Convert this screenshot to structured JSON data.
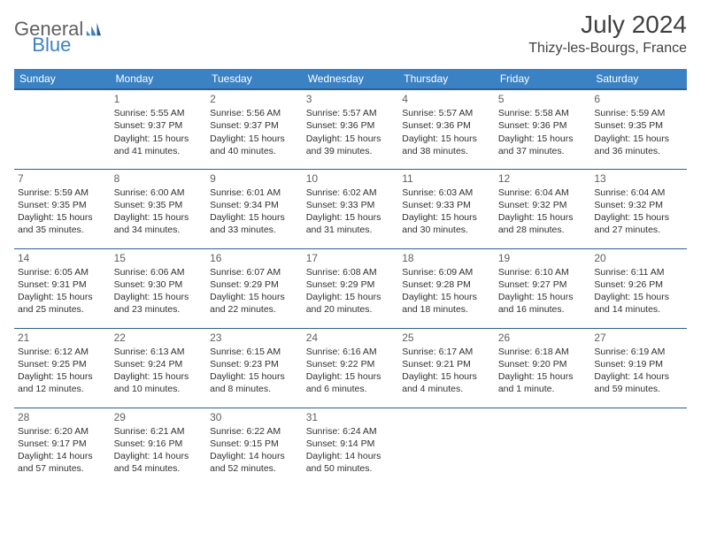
{
  "logo": {
    "text_general": "General",
    "text_blue": "Blue"
  },
  "header": {
    "month_title": "July 2024",
    "location": "Thizy-les-Bourgs, France"
  },
  "colors": {
    "header_bg": "#3b82c4",
    "header_border": "#2d5f8f",
    "text": "#303030",
    "muted": "#606060"
  },
  "day_headers": [
    "Sunday",
    "Monday",
    "Tuesday",
    "Wednesday",
    "Thursday",
    "Friday",
    "Saturday"
  ],
  "weeks": [
    [
      null,
      {
        "n": "1",
        "sr": "Sunrise: 5:55 AM",
        "ss": "Sunset: 9:37 PM",
        "dl": "Daylight: 15 hours and 41 minutes."
      },
      {
        "n": "2",
        "sr": "Sunrise: 5:56 AM",
        "ss": "Sunset: 9:37 PM",
        "dl": "Daylight: 15 hours and 40 minutes."
      },
      {
        "n": "3",
        "sr": "Sunrise: 5:57 AM",
        "ss": "Sunset: 9:36 PM",
        "dl": "Daylight: 15 hours and 39 minutes."
      },
      {
        "n": "4",
        "sr": "Sunrise: 5:57 AM",
        "ss": "Sunset: 9:36 PM",
        "dl": "Daylight: 15 hours and 38 minutes."
      },
      {
        "n": "5",
        "sr": "Sunrise: 5:58 AM",
        "ss": "Sunset: 9:36 PM",
        "dl": "Daylight: 15 hours and 37 minutes."
      },
      {
        "n": "6",
        "sr": "Sunrise: 5:59 AM",
        "ss": "Sunset: 9:35 PM",
        "dl": "Daylight: 15 hours and 36 minutes."
      }
    ],
    [
      {
        "n": "7",
        "sr": "Sunrise: 5:59 AM",
        "ss": "Sunset: 9:35 PM",
        "dl": "Daylight: 15 hours and 35 minutes."
      },
      {
        "n": "8",
        "sr": "Sunrise: 6:00 AM",
        "ss": "Sunset: 9:35 PM",
        "dl": "Daylight: 15 hours and 34 minutes."
      },
      {
        "n": "9",
        "sr": "Sunrise: 6:01 AM",
        "ss": "Sunset: 9:34 PM",
        "dl": "Daylight: 15 hours and 33 minutes."
      },
      {
        "n": "10",
        "sr": "Sunrise: 6:02 AM",
        "ss": "Sunset: 9:33 PM",
        "dl": "Daylight: 15 hours and 31 minutes."
      },
      {
        "n": "11",
        "sr": "Sunrise: 6:03 AM",
        "ss": "Sunset: 9:33 PM",
        "dl": "Daylight: 15 hours and 30 minutes."
      },
      {
        "n": "12",
        "sr": "Sunrise: 6:04 AM",
        "ss": "Sunset: 9:32 PM",
        "dl": "Daylight: 15 hours and 28 minutes."
      },
      {
        "n": "13",
        "sr": "Sunrise: 6:04 AM",
        "ss": "Sunset: 9:32 PM",
        "dl": "Daylight: 15 hours and 27 minutes."
      }
    ],
    [
      {
        "n": "14",
        "sr": "Sunrise: 6:05 AM",
        "ss": "Sunset: 9:31 PM",
        "dl": "Daylight: 15 hours and 25 minutes."
      },
      {
        "n": "15",
        "sr": "Sunrise: 6:06 AM",
        "ss": "Sunset: 9:30 PM",
        "dl": "Daylight: 15 hours and 23 minutes."
      },
      {
        "n": "16",
        "sr": "Sunrise: 6:07 AM",
        "ss": "Sunset: 9:29 PM",
        "dl": "Daylight: 15 hours and 22 minutes."
      },
      {
        "n": "17",
        "sr": "Sunrise: 6:08 AM",
        "ss": "Sunset: 9:29 PM",
        "dl": "Daylight: 15 hours and 20 minutes."
      },
      {
        "n": "18",
        "sr": "Sunrise: 6:09 AM",
        "ss": "Sunset: 9:28 PM",
        "dl": "Daylight: 15 hours and 18 minutes."
      },
      {
        "n": "19",
        "sr": "Sunrise: 6:10 AM",
        "ss": "Sunset: 9:27 PM",
        "dl": "Daylight: 15 hours and 16 minutes."
      },
      {
        "n": "20",
        "sr": "Sunrise: 6:11 AM",
        "ss": "Sunset: 9:26 PM",
        "dl": "Daylight: 15 hours and 14 minutes."
      }
    ],
    [
      {
        "n": "21",
        "sr": "Sunrise: 6:12 AM",
        "ss": "Sunset: 9:25 PM",
        "dl": "Daylight: 15 hours and 12 minutes."
      },
      {
        "n": "22",
        "sr": "Sunrise: 6:13 AM",
        "ss": "Sunset: 9:24 PM",
        "dl": "Daylight: 15 hours and 10 minutes."
      },
      {
        "n": "23",
        "sr": "Sunrise: 6:15 AM",
        "ss": "Sunset: 9:23 PM",
        "dl": "Daylight: 15 hours and 8 minutes."
      },
      {
        "n": "24",
        "sr": "Sunrise: 6:16 AM",
        "ss": "Sunset: 9:22 PM",
        "dl": "Daylight: 15 hours and 6 minutes."
      },
      {
        "n": "25",
        "sr": "Sunrise: 6:17 AM",
        "ss": "Sunset: 9:21 PM",
        "dl": "Daylight: 15 hours and 4 minutes."
      },
      {
        "n": "26",
        "sr": "Sunrise: 6:18 AM",
        "ss": "Sunset: 9:20 PM",
        "dl": "Daylight: 15 hours and 1 minute."
      },
      {
        "n": "27",
        "sr": "Sunrise: 6:19 AM",
        "ss": "Sunset: 9:19 PM",
        "dl": "Daylight: 14 hours and 59 minutes."
      }
    ],
    [
      {
        "n": "28",
        "sr": "Sunrise: 6:20 AM",
        "ss": "Sunset: 9:17 PM",
        "dl": "Daylight: 14 hours and 57 minutes."
      },
      {
        "n": "29",
        "sr": "Sunrise: 6:21 AM",
        "ss": "Sunset: 9:16 PM",
        "dl": "Daylight: 14 hours and 54 minutes."
      },
      {
        "n": "30",
        "sr": "Sunrise: 6:22 AM",
        "ss": "Sunset: 9:15 PM",
        "dl": "Daylight: 14 hours and 52 minutes."
      },
      {
        "n": "31",
        "sr": "Sunrise: 6:24 AM",
        "ss": "Sunset: 9:14 PM",
        "dl": "Daylight: 14 hours and 50 minutes."
      },
      null,
      null,
      null
    ]
  ]
}
